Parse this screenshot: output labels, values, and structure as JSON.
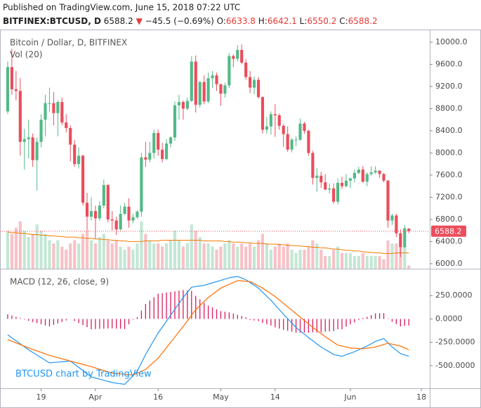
{
  "header": {
    "published": "Published on TradingView.com, June 15, 2018 07:22 UTC",
    "symbol": "BITFINEX:BTCUSD, D",
    "direction": "▼",
    "change": "−45.5",
    "change_pct": "(−0.69%)",
    "ohlc_labels": [
      "O:",
      "H:",
      "L:",
      "C:"
    ]
  },
  "chart_data": {
    "type": "candlestick",
    "title": "Bitcoin / Dollar, D, BITFINEX",
    "watermark": "BTCUSD chart by TradingView",
    "up_color": "#53b987",
    "down_color": "#eb4d5c",
    "grid": false,
    "last_price_line": true,
    "xlim": [
      -1,
      101
    ],
    "xticks": [
      {
        "value": 8,
        "label": "19"
      },
      {
        "value": 21,
        "label": "Apr"
      },
      {
        "value": 36,
        "label": "16"
      },
      {
        "value": 51,
        "label": "May"
      },
      {
        "value": 64,
        "label": "14"
      },
      {
        "value": 82,
        "label": "Jun"
      },
      {
        "value": 99,
        "label": "18"
      }
    ],
    "ylim": [
      5910,
      10190
    ],
    "yticks": [
      {
        "value": 6000,
        "label": "6000.0"
      },
      {
        "value": 6400,
        "label": "6400.0"
      },
      {
        "value": 6800,
        "label": "6800.0"
      },
      {
        "value": 7200,
        "label": "7200.0"
      },
      {
        "value": 7600,
        "label": "7600.0"
      },
      {
        "value": 8000,
        "label": "8000.0"
      },
      {
        "value": 8400,
        "label": "8400.0"
      },
      {
        "value": 8800,
        "label": "8800.0"
      },
      {
        "value": 9200,
        "label": "9200.0"
      },
      {
        "value": 9600,
        "label": "9600.0"
      },
      {
        "value": 10000,
        "label": "10000.0"
      }
    ],
    "ohlc": [
      [
        8750,
        9650,
        8700,
        9550
      ],
      [
        9550,
        9880,
        9050,
        9150
      ],
      [
        9150,
        9480,
        8950,
        9120
      ],
      [
        9120,
        9350,
        7950,
        8200
      ],
      [
        8200,
        8430,
        7700,
        8250
      ],
      [
        8250,
        8600,
        7900,
        8280
      ],
      [
        8280,
        8350,
        7750,
        7870
      ],
      [
        7870,
        8280,
        7320,
        8200
      ],
      [
        8200,
        8700,
        8100,
        8600
      ],
      [
        8600,
        9050,
        8300,
        8900
      ],
      [
        8900,
        9180,
        8750,
        8900
      ],
      [
        8900,
        9100,
        8500,
        8720
      ],
      [
        8720,
        8950,
        8300,
        8920
      ],
      [
        8920,
        9000,
        8500,
        8550
      ],
      [
        8550,
        8700,
        8370,
        8450
      ],
      [
        8450,
        8500,
        7850,
        8150
      ],
      [
        8150,
        8230,
        7750,
        7800
      ],
      [
        7800,
        8100,
        7720,
        7950
      ],
      [
        7950,
        7970,
        7050,
        7100
      ],
      [
        7100,
        7280,
        6600,
        6850
      ],
      [
        6850,
        7200,
        6780,
        6950
      ],
      [
        6950,
        7050,
        6450,
        6820
      ],
      [
        6820,
        7130,
        6780,
        7050
      ],
      [
        7050,
        7520,
        7000,
        7420
      ],
      [
        7420,
        7440,
        6750,
        6800
      ],
      [
        6800,
        6950,
        6600,
        6780
      ],
      [
        6780,
        6850,
        6520,
        6620
      ],
      [
        6620,
        7050,
        6600,
        6900
      ],
      [
        6900,
        7100,
        6880,
        7030
      ],
      [
        7030,
        7180,
        6650,
        6780
      ],
      [
        6780,
        6900,
        6730,
        6840
      ],
      [
        6840,
        6970,
        6810,
        6940
      ],
      [
        6940,
        8000,
        6850,
        7920
      ],
      [
        7920,
        8200,
        7750,
        7880
      ],
      [
        7880,
        8200,
        7830,
        8000
      ],
      [
        8000,
        8420,
        7900,
        8360
      ],
      [
        8360,
        8420,
        7950,
        8060
      ],
      [
        8060,
        8180,
        7830,
        7890
      ],
      [
        7890,
        8250,
        7870,
        8170
      ],
      [
        8170,
        8300,
        8100,
        8280
      ],
      [
        8280,
        8930,
        8220,
        8860
      ],
      [
        8860,
        9050,
        8600,
        8920
      ],
      [
        8920,
        8950,
        8600,
        8800
      ],
      [
        8800,
        9000,
        8770,
        8940
      ],
      [
        8940,
        9750,
        8920,
        9650
      ],
      [
        9650,
        9760,
        8730,
        8870
      ],
      [
        8870,
        9300,
        8820,
        9280
      ],
      [
        9280,
        9400,
        8880,
        8930
      ],
      [
        8930,
        9450,
        8900,
        9350
      ],
      [
        9350,
        9480,
        9170,
        9400
      ],
      [
        9400,
        9450,
        9120,
        9240
      ],
      [
        9240,
        9250,
        8850,
        9070
      ],
      [
        9070,
        9270,
        9000,
        9220
      ],
      [
        9220,
        9800,
        9170,
        9750
      ],
      [
        9750,
        9780,
        9550,
        9700
      ],
      [
        9700,
        9950,
        9650,
        9860
      ],
      [
        9860,
        9960,
        9600,
        9630
      ],
      [
        9630,
        9690,
        9320,
        9370
      ],
      [
        9370,
        9480,
        9080,
        9180
      ],
      [
        9180,
        9380,
        9060,
        9320
      ],
      [
        9320,
        9370,
        8980,
        9010
      ],
      [
        9010,
        9020,
        8350,
        8420
      ],
      [
        8420,
        8650,
        8350,
        8480
      ],
      [
        8480,
        8750,
        8330,
        8700
      ],
      [
        8700,
        8880,
        8290,
        8680
      ],
      [
        8680,
        8710,
        8420,
        8490
      ],
      [
        8490,
        8520,
        8110,
        8340
      ],
      [
        8340,
        8480,
        8020,
        8060
      ],
      [
        8060,
        8270,
        8010,
        8240
      ],
      [
        8240,
        8300,
        8120,
        8240
      ],
      [
        8240,
        8620,
        8220,
        8530
      ],
      [
        8530,
        8560,
        8350,
        8400
      ],
      [
        8400,
        8420,
        7950,
        8000
      ],
      [
        8000,
        8040,
        7430,
        7550
      ],
      [
        7550,
        7730,
        7300,
        7590
      ],
      [
        7590,
        7660,
        7370,
        7470
      ],
      [
        7470,
        7620,
        7330,
        7340
      ],
      [
        7340,
        7450,
        7270,
        7360
      ],
      [
        7360,
        7450,
        7080,
        7120
      ],
      [
        7120,
        7540,
        7070,
        7460
      ],
      [
        7460,
        7570,
        7350,
        7400
      ],
      [
        7400,
        7620,
        7380,
        7500
      ],
      [
        7500,
        7560,
        7360,
        7540
      ],
      [
        7540,
        7700,
        7470,
        7640
      ],
      [
        7640,
        7750,
        7620,
        7700
      ],
      [
        7700,
        7760,
        7460,
        7480
      ],
      [
        7480,
        7650,
        7400,
        7620
      ],
      [
        7620,
        7760,
        7590,
        7650
      ],
      [
        7650,
        7760,
        7620,
        7680
      ],
      [
        7680,
        7690,
        7550,
        7620
      ],
      [
        7620,
        7640,
        7470,
        7500
      ],
      [
        7500,
        7510,
        6650,
        6780
      ],
      [
        6780,
        6900,
        6700,
        6870
      ],
      [
        6870,
        6900,
        6480,
        6550
      ],
      [
        6550,
        6620,
        6120,
        6300
      ],
      [
        6300,
        6700,
        6280,
        6640
      ],
      [
        6633.8,
        6642.1,
        6550.2,
        6588.2
      ]
    ],
    "volume": {
      "name": "Vol (20)",
      "ylim": [
        0,
        375
      ],
      "ma_color": "#f57c00",
      "values": [
        60,
        55,
        65,
        75,
        60,
        50,
        55,
        70,
        60,
        55,
        45,
        40,
        45,
        35,
        30,
        40,
        45,
        40,
        55,
        60,
        45,
        40,
        50,
        55,
        45,
        40,
        45,
        35,
        30,
        35,
        30,
        40,
        75,
        55,
        45,
        40,
        40,
        35,
        40,
        45,
        60,
        45,
        35,
        40,
        70,
        60,
        50,
        40,
        40,
        35,
        30,
        35,
        40,
        45,
        40,
        35,
        40,
        35,
        40,
        35,
        45,
        55,
        40,
        30,
        35,
        40,
        35,
        40,
        30,
        25,
        30,
        30,
        35,
        45,
        40,
        30,
        20,
        20,
        30,
        35,
        25,
        25,
        25,
        20,
        20,
        25,
        20,
        20,
        20,
        20,
        15,
        45,
        40,
        40,
        45,
        35,
        5
      ],
      "ma": [
        58,
        57,
        57,
        56,
        56,
        55,
        54,
        54,
        53,
        53,
        52,
        52,
        51,
        51,
        50,
        50,
        50,
        49,
        49,
        48,
        48,
        47,
        47,
        46,
        46,
        45,
        45,
        44,
        44,
        43,
        43,
        43,
        43,
        44,
        44,
        44,
        44,
        45,
        45,
        45,
        45,
        45,
        45,
        45,
        45,
        45,
        45,
        44,
        44,
        44,
        44,
        44,
        43,
        43,
        42,
        42,
        42,
        41,
        41,
        40,
        40,
        40,
        39,
        39,
        39,
        38,
        38,
        37,
        37,
        36,
        36,
        35,
        35,
        34,
        34,
        33,
        33,
        32,
        31,
        31,
        30,
        29,
        29,
        28,
        28,
        27,
        26,
        26,
        25,
        25,
        24,
        24,
        24,
        25,
        25,
        25,
        25
      ]
    },
    "macd": {
      "name": "MACD (12, 26, close, 9)",
      "ylim": [
        -742,
        515
      ],
      "macd_color": "#2196f3",
      "signal_color": "#ff6d00",
      "histogram_color": "#d81b60",
      "yticks": [
        {
          "value": 250,
          "label": "250.0000"
        },
        {
          "value": 0,
          "label": "0.0000"
        },
        {
          "value": -250,
          "label": "-250.0000"
        },
        {
          "value": -500,
          "label": "-500.0000"
        }
      ],
      "macd": [
        -170,
        -202,
        -234,
        -266,
        -298,
        -330,
        -358,
        -386,
        -414,
        -442,
        -470,
        -466,
        -462,
        -458,
        -454,
        -450,
        -484,
        -518,
        -552,
        -586,
        -620,
        -632,
        -644,
        -656,
        -668,
        -680,
        -687,
        -693,
        -700,
        -653,
        -607,
        -560,
        -470,
        -380,
        -303,
        -227,
        -150,
        -87,
        -23,
        40,
        103,
        167,
        230,
        285,
        340,
        347,
        353,
        360,
        373,
        387,
        400,
        413,
        427,
        440,
        448,
        455,
        438,
        420,
        390,
        360,
        330,
        287,
        243,
        200,
        150,
        100,
        50,
        3,
        -43,
        -90,
        -127,
        -163,
        -200,
        -233,
        -267,
        -300,
        -327,
        -353,
        -380,
        -390,
        -400,
        -383,
        -367,
        -350,
        -330,
        -310,
        -290,
        -265,
        -240,
        -225,
        -210,
        -255,
        -300,
        -335,
        -370,
        -385,
        -400
      ],
      "signal": [
        -220,
        -238,
        -256,
        -274,
        -292,
        -310,
        -326,
        -342,
        -358,
        -374,
        -390,
        -402,
        -414,
        -426,
        -438,
        -450,
        -462,
        -474,
        -486,
        -498,
        -510,
        -524,
        -538,
        -552,
        -566,
        -580,
        -584,
        -588,
        -592,
        -596,
        -600,
        -580,
        -560,
        -540,
        -500,
        -460,
        -420,
        -363,
        -307,
        -250,
        -193,
        -137,
        -80,
        -20,
        40,
        100,
        143,
        187,
        230,
        263,
        297,
        330,
        350,
        370,
        390,
        410,
        407,
        403,
        400,
        377,
        353,
        330,
        300,
        270,
        240,
        203,
        167,
        130,
        93,
        57,
        20,
        -17,
        -53,
        -90,
        -123,
        -157,
        -190,
        -220,
        -250,
        -280,
        -290,
        -300,
        -310,
        -313,
        -317,
        -320,
        -313,
        -307,
        -300,
        -287,
        -273,
        -260,
        -270,
        -280,
        -290,
        -310,
        -330
      ],
      "histogram": [
        50,
        36,
        22,
        8,
        -6,
        -20,
        -32,
        -44,
        -56,
        -68,
        -80,
        -64,
        -48,
        -32,
        -16,
        0,
        -22,
        -44,
        -66,
        -88,
        -110,
        -108,
        -106,
        -104,
        -102,
        -100,
        -103,
        -105,
        -108,
        -57,
        -7,
        20,
        90,
        160,
        197,
        233,
        270,
        276,
        284,
        290,
        296,
        304,
        310,
        305,
        300,
        247,
        210,
        173,
        143,
        124,
        103,
        83,
        77,
        70,
        58,
        45,
        31,
        17,
        -10,
        -17,
        -23,
        -43,
        -57,
        -70,
        -90,
        -103,
        -117,
        -127,
        -136,
        -147,
        -147,
        -146,
        -147,
        -143,
        -144,
        -143,
        -137,
        -133,
        -130,
        -110,
        -110,
        -83,
        -57,
        -37,
        -13,
        10,
        23,
        42,
        60,
        62,
        63,
        5,
        -30,
        -55,
        -80,
        -75,
        -70
      ]
    }
  }
}
